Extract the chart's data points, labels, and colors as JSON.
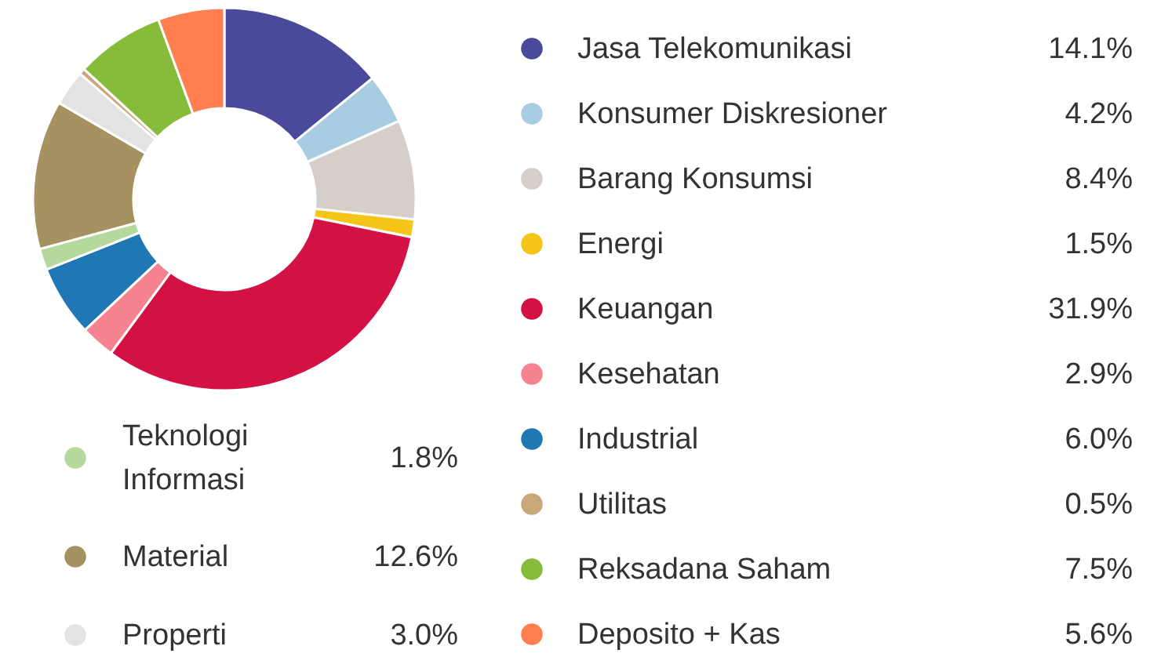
{
  "chart_data": {
    "type": "donut",
    "categories": [
      "Jasa Telekomunikasi",
      "Konsumer Diskresioner",
      "Barang Konsumsi",
      "Energi",
      "Keuangan",
      "Kesehatan",
      "Industrial",
      "Teknologi Informasi",
      "Material",
      "Properti",
      "Utilitas",
      "Reksadana Saham",
      "Deposito + Kas"
    ],
    "values": [
      14.1,
      4.2,
      8.4,
      1.5,
      31.9,
      2.9,
      6.0,
      1.8,
      12.6,
      3.0,
      0.5,
      7.5,
      5.6
    ],
    "value_labels": [
      "14.1%",
      "4.2%",
      "8.4%",
      "1.5%",
      "31.9%",
      "2.9%",
      "6.0%",
      "1.8%",
      "12.6%",
      "3.0%",
      "0.5%",
      "7.5%",
      "5.6%"
    ],
    "colors": [
      "#4b4a9a",
      "#a8cde3",
      "#d6cfc9",
      "#f5c518",
      "#d41145",
      "#f6838f",
      "#1f78b4",
      "#b5d99c",
      "#a69160",
      "#e3e3e3",
      "#c8a878",
      "#86bc3a",
      "#ff7f50"
    ],
    "legend": "right"
  }
}
